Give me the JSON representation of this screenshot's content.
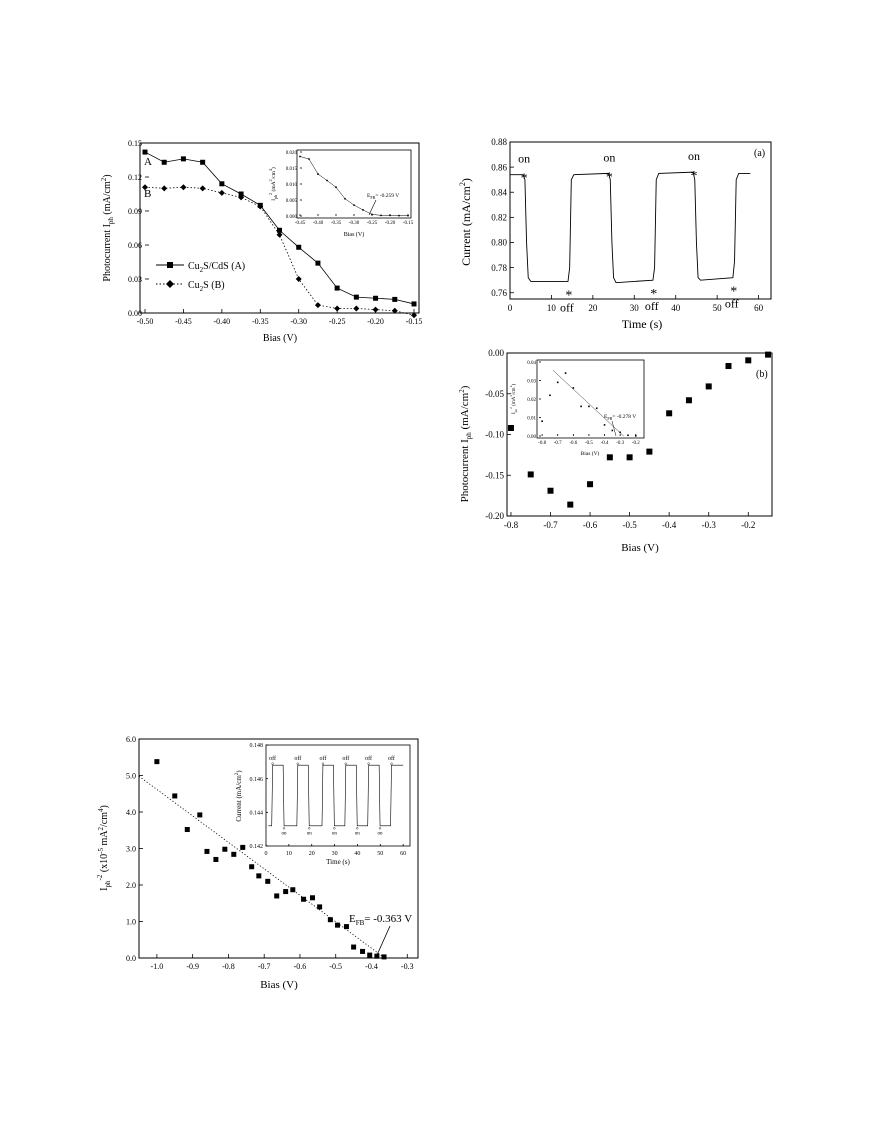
{
  "chart_data": [
    {
      "id": "fig1",
      "type": "line",
      "xlabel": "Bias (V)",
      "ylabel": "Photocurrent I",
      "ylabel_sub": "ph",
      "ylabel_unit": "(mA/cm",
      "ylabel_unit_sup": "2",
      "ylabel_unit_end": ")",
      "xlim": [
        -0.5,
        -0.15
      ],
      "ylim": [
        0.0,
        0.15
      ],
      "xticks": [
        "-0.50",
        "-0.45",
        "-0.40",
        "-0.35",
        "-0.30",
        "-0.25",
        "-0.20",
        "-0.15"
      ],
      "xtick_values": [
        -0.5,
        -0.45,
        -0.4,
        -0.35,
        -0.3,
        -0.25,
        -0.2,
        -0.15
      ],
      "yticks": [
        "0.00",
        "0.03",
        "0.06",
        "0.09",
        "0.12",
        "0.15"
      ],
      "ytick_values": [
        0,
        0.03,
        0.06,
        0.09,
        0.12,
        0.15
      ],
      "curve_labels": [
        "A",
        "B"
      ],
      "x": [
        -0.5,
        -0.475,
        -0.45,
        -0.425,
        -0.4,
        -0.375,
        -0.35,
        -0.325,
        -0.3,
        -0.275,
        -0.25,
        -0.225,
        -0.2,
        -0.175,
        -0.15
      ],
      "series": [
        {
          "name": "Cu2S/CdS (A)",
          "marker": "square",
          "dash": "solid",
          "values": [
            0.142,
            0.133,
            0.136,
            0.133,
            0.114,
            0.105,
            0.095,
            0.073,
            0.058,
            0.044,
            0.022,
            0.014,
            0.013,
            0.012,
            0.008
          ]
        },
        {
          "name": "Cu2S (B)",
          "marker": "diamond",
          "dash": "dotted",
          "values": [
            0.111,
            0.11,
            0.111,
            0.11,
            0.106,
            0.102,
            0.094,
            0.069,
            0.03,
            0.007,
            0.004,
            0.004,
            0.003,
            0.002,
            -0.002
          ]
        }
      ],
      "legend": [
        {
          "base": "Cu",
          "sub": "2",
          "rest": "S/CdS (A)"
        },
        {
          "base": "Cu",
          "sub": "2",
          "rest": "S (B)"
        }
      ],
      "inset": {
        "xlabel": "Bias (V)",
        "ylabel_main": "I",
        "ylabel_sub": "ph",
        "ylabel_sup": "2",
        "ylabel_unit": " (mA",
        "ylabel_unit_sup": "2",
        "ylabel_unit2": "/cm",
        "ylabel_unit2_sup": "4",
        "ylabel_unit_end": ")",
        "xlim": [
          -0.45,
          -0.15
        ],
        "ylim": [
          0.0,
          0.02
        ],
        "xticks": [
          "-0.45",
          "-0.40",
          "-0.35",
          "-0.30",
          "-0.25",
          "-0.20",
          "-0.15"
        ],
        "xtick_values": [
          -0.45,
          -0.4,
          -0.35,
          -0.3,
          -0.25,
          -0.2,
          -0.15
        ],
        "yticks": [
          "0.000",
          "0.005",
          "0.010",
          "0.015",
          "0.020"
        ],
        "ytick_values": [
          0,
          0.005,
          0.01,
          0.015,
          0.02
        ],
        "x": [
          -0.45,
          -0.425,
          -0.4,
          -0.375,
          -0.35,
          -0.325,
          -0.3,
          -0.275,
          -0.25,
          -0.225,
          -0.2,
          -0.175,
          -0.15
        ],
        "values": [
          0.0186,
          0.0178,
          0.0131,
          0.0111,
          0.009,
          0.0054,
          0.0034,
          0.0019,
          0.0005,
          0.0002,
          0.0002,
          0.0001,
          0.0001
        ],
        "annotation_main": "E",
        "annotation_sub": "FB",
        "annotation_rest": "= -0.259 V",
        "annotation_x": -0.259
      }
    },
    {
      "id": "fig2a",
      "type": "line",
      "panel_label": "(a)",
      "xlabel": "Time (s)",
      "ylabel": "Current (mA/cm",
      "ylabel_sup": "2",
      "ylabel_end": ")",
      "xlim": [
        0,
        63
      ],
      "ylim": [
        0.755,
        0.88
      ],
      "xticks": [
        "0",
        "10",
        "20",
        "30",
        "40",
        "50",
        "60"
      ],
      "xtick_values": [
        0,
        10,
        20,
        30,
        40,
        50,
        60
      ],
      "yticks": [
        "0.76",
        "0.78",
        "0.80",
        "0.82",
        "0.84",
        "0.86",
        "0.88"
      ],
      "ytick_values": [
        0.76,
        0.78,
        0.8,
        0.82,
        0.84,
        0.86,
        0.88
      ],
      "series": [
        {
          "name": "",
          "values_xy": [
            [
              0,
              0.854
            ],
            [
              3.2,
              0.854
            ],
            [
              3.6,
              0.85
            ],
            [
              4.0,
              0.8
            ],
            [
              4.4,
              0.772
            ],
            [
              5,
              0.769
            ],
            [
              14,
              0.769
            ],
            [
              14.4,
              0.78
            ],
            [
              14.8,
              0.85
            ],
            [
              15.4,
              0.854
            ],
            [
              23.8,
              0.855
            ],
            [
              24.2,
              0.85
            ],
            [
              24.6,
              0.8
            ],
            [
              25.0,
              0.772
            ],
            [
              25.6,
              0.768
            ],
            [
              34.5,
              0.77
            ],
            [
              34.9,
              0.78
            ],
            [
              35.3,
              0.85
            ],
            [
              35.9,
              0.855
            ],
            [
              44.2,
              0.856
            ],
            [
              44.6,
              0.85
            ],
            [
              45.0,
              0.8
            ],
            [
              45.4,
              0.772
            ],
            [
              46,
              0.77
            ],
            [
              53.8,
              0.772
            ],
            [
              54.2,
              0.785
            ],
            [
              54.6,
              0.85
            ],
            [
              55.2,
              0.855
            ],
            [
              58,
              0.855
            ]
          ]
        }
      ],
      "annotations": [
        {
          "text": "on",
          "x": 3.4,
          "y": 0.854,
          "pos": "above"
        },
        {
          "text": "off",
          "x": 14.2,
          "y": 0.769,
          "pos": "below"
        },
        {
          "text": "on",
          "x": 24.0,
          "y": 0.855,
          "pos": "above"
        },
        {
          "text": "off",
          "x": 34.7,
          "y": 0.77,
          "pos": "below"
        },
        {
          "text": "on",
          "x": 44.4,
          "y": 0.856,
          "pos": "above"
        },
        {
          "text": "off",
          "x": 54.0,
          "y": 0.772,
          "pos": "below"
        }
      ]
    },
    {
      "id": "fig2b",
      "type": "scatter",
      "panel_label": "(b)",
      "xlabel": "Bias (V)",
      "ylabel": "Photocurrent I",
      "ylabel_sub": "ph",
      "ylabel_unit": "(mA/cm",
      "ylabel_unit_sup": "2",
      "ylabel_unit_end": ")",
      "xlim": [
        -0.81,
        -0.14
      ],
      "ylim": [
        -0.2,
        0.0
      ],
      "xticks": [
        "-0.8",
        "-0.7",
        "-0.6",
        "-0.5",
        "-0.4",
        "-0.3",
        "-0.2"
      ],
      "xtick_values": [
        -0.8,
        -0.7,
        -0.6,
        -0.5,
        -0.4,
        -0.3,
        -0.2
      ],
      "yticks": [
        "-0.20",
        "-0.15",
        "-0.10",
        "-0.05",
        "0.00"
      ],
      "ytick_values": [
        -0.2,
        -0.15,
        -0.1,
        -0.05,
        0.0
      ],
      "x": [
        -0.8,
        -0.75,
        -0.7,
        -0.65,
        -0.6,
        -0.55,
        -0.5,
        -0.45,
        -0.4,
        -0.35,
        -0.3,
        -0.25,
        -0.2,
        -0.15
      ],
      "values": [
        -0.092,
        -0.149,
        -0.169,
        -0.186,
        -0.161,
        -0.128,
        -0.128,
        -0.121,
        -0.074,
        -0.058,
        -0.041,
        -0.016,
        -0.009,
        -0.002
      ],
      "inset": {
        "xlabel": "Bias (V)",
        "ylabel_main": "I",
        "ylabel_sub": "ph",
        "ylabel_sup": "2",
        "ylabel_unit": " (mA",
        "ylabel_unit_sup": "2",
        "ylabel_unit2": "/cm",
        "ylabel_unit2_sup": "4",
        "ylabel_unit_end": ")",
        "xlim": [
          -0.82,
          -0.16
        ],
        "ylim": [
          0.0,
          0.04
        ],
        "xticks": [
          "-0.8",
          "-0.7",
          "-0.6",
          "-0.5",
          "-0.4",
          "-0.3",
          "-0.2"
        ],
        "xtick_values": [
          -0.8,
          -0.7,
          -0.6,
          -0.5,
          -0.4,
          -0.3,
          -0.2
        ],
        "yticks": [
          "0.00",
          "0.01",
          "0.02",
          "0.03",
          "0.04"
        ],
        "ytick_values": [
          0,
          0.01,
          0.02,
          0.03,
          0.04
        ],
        "x": [
          -0.8,
          -0.75,
          -0.7,
          -0.65,
          -0.6,
          -0.55,
          -0.5,
          -0.45,
          -0.4,
          -0.35,
          -0.3,
          -0.25,
          -0.2
        ],
        "values": [
          0.008,
          0.022,
          0.029,
          0.034,
          0.026,
          0.016,
          0.016,
          0.015,
          0.006,
          0.003,
          0.002,
          0.0004,
          0.0001
        ],
        "fit": [
          [
            -0.73,
            0.0355
          ],
          [
            -0.278,
            0.0
          ]
        ],
        "annotation_main": "E",
        "annotation_sub": "FB",
        "annotation_rest": "= -0.278 V",
        "annotation_x": -0.278
      }
    },
    {
      "id": "fig3",
      "type": "scatter",
      "xlabel": "Bias (V)",
      "ylabel_main": "I",
      "ylabel_sub": "ph",
      "ylabel_sup": "-2",
      "ylabel_unit": " (x10",
      "ylabel_unit_sup": "-5",
      "ylabel_unit2": " mA",
      "ylabel_unit2_sup": "2",
      "ylabel_unit3": "/cm",
      "ylabel_unit3_sup": "4",
      "ylabel_unit_end": ")",
      "xlim": [
        -1.05,
        -0.27
      ],
      "ylim": [
        0.0,
        6.0
      ],
      "xticks": [
        "-1.0",
        "-0.9",
        "-0.8",
        "-0.7",
        "-0.6",
        "-0.5",
        "-0.4",
        "-0.3"
      ],
      "xtick_values": [
        -1.0,
        -0.9,
        -0.8,
        -0.7,
        -0.6,
        -0.5,
        -0.4,
        -0.3
      ],
      "yticks": [
        "0.0",
        "1.0",
        "2.0",
        "3.0",
        "4.0",
        "5.0",
        "6.0"
      ],
      "ytick_values": [
        0,
        1,
        2,
        3,
        4,
        5,
        6
      ],
      "x": [
        -1.0,
        -0.95,
        -0.915,
        -0.88,
        -0.86,
        -0.835,
        -0.81,
        -0.785,
        -0.76,
        -0.735,
        -0.715,
        -0.69,
        -0.665,
        -0.64,
        -0.62,
        -0.59,
        -0.565,
        -0.545,
        -0.515,
        -0.495,
        -0.47,
        -0.45,
        -0.425,
        -0.405,
        -0.385,
        -0.365
      ],
      "values": [
        5.38,
        4.44,
        3.52,
        3.92,
        2.92,
        2.7,
        2.98,
        2.84,
        3.03,
        2.5,
        2.25,
        2.1,
        1.7,
        1.82,
        1.87,
        1.61,
        1.65,
        1.4,
        1.05,
        0.9,
        0.86,
        0.3,
        0.18,
        0.08,
        0.05,
        0.03
      ],
      "fit": [
        [
          -1.05,
          4.98
        ],
        [
          -0.363,
          0.0
        ]
      ],
      "annotation_main": "E",
      "annotation_sub": "FB",
      "annotation_rest": "= -0.363 V",
      "annotation_x": -0.363,
      "inset": {
        "xlabel": "Time (s)",
        "ylabel": "Current (mA/cm",
        "ylabel_sup": "2",
        "ylabel_end": ")",
        "xlim": [
          0,
          63
        ],
        "ylim": [
          0.142,
          0.148
        ],
        "xticks": [
          "0",
          "10",
          "20",
          "30",
          "40",
          "50",
          "60"
        ],
        "xtick_values": [
          0,
          10,
          20,
          30,
          40,
          50,
          60
        ],
        "yticks": [
          "0.142",
          "0.144",
          "0.146",
          "0.148"
        ],
        "ytick_values": [
          0.142,
          0.144,
          0.146,
          0.148
        ],
        "on_times": [
          7.5,
          18.5,
          29.5,
          39.5,
          49.5
        ],
        "off_times": [
          2.5,
          13.5,
          24.5,
          34.5,
          44.5,
          54.5
        ],
        "high": 0.1468,
        "low": 0.1432,
        "labels": {
          "on": "on",
          "off": "off"
        }
      }
    }
  ]
}
